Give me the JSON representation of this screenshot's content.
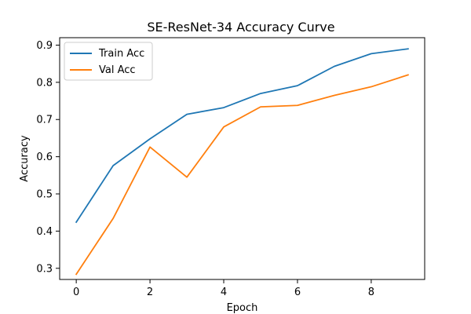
{
  "chart_data": {
    "type": "line",
    "title": "SE-ResNet-34 Accuracy Curve",
    "xlabel": "Epoch",
    "ylabel": "Accuracy",
    "xlim": [
      -0.45,
      9.45
    ],
    "ylim": [
      0.27,
      0.92
    ],
    "xticks": [
      0,
      2,
      4,
      6,
      8
    ],
    "yticks": [
      0.3,
      0.4,
      0.5,
      0.6,
      0.7,
      0.8,
      0.9
    ],
    "ytick_labels": [
      "0.3",
      "0.4",
      "0.5",
      "0.6",
      "0.7",
      "0.8",
      "0.9"
    ],
    "grid": false,
    "legend_position": "upper-left",
    "x": [
      0,
      1,
      2,
      3,
      4,
      5,
      6,
      7,
      8,
      9
    ],
    "series": [
      {
        "name": "Train Acc",
        "color": "#1f77b4",
        "values": [
          0.424,
          0.576,
          0.648,
          0.714,
          0.732,
          0.77,
          0.791,
          0.843,
          0.877,
          0.89
        ]
      },
      {
        "name": "Val Acc",
        "color": "#ff7f0e",
        "values": [
          0.284,
          0.434,
          0.626,
          0.545,
          0.68,
          0.734,
          0.738,
          0.765,
          0.788,
          0.82
        ]
      }
    ]
  }
}
